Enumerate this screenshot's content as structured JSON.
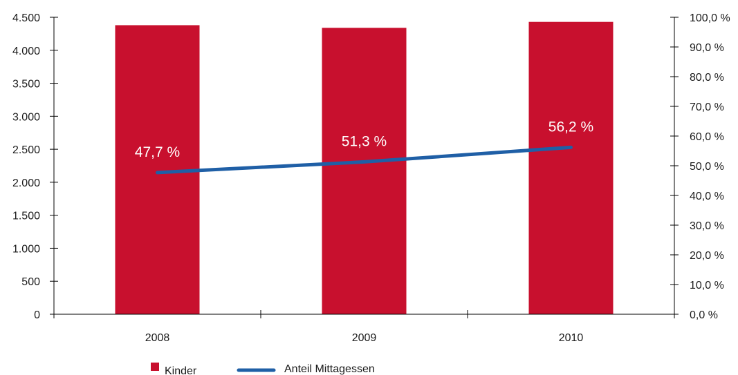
{
  "chart_data": {
    "type": "bar",
    "categories": [
      "2008",
      "2009",
      "2010"
    ],
    "y_left": {
      "range": [
        0,
        4500
      ],
      "ticks": [
        0,
        500,
        1000,
        1500,
        2000,
        2500,
        3000,
        3500,
        4000,
        4500
      ],
      "tick_labels": [
        "0",
        "500",
        "1.000",
        "1.500",
        "2.000",
        "2.500",
        "3.000",
        "3.500",
        "4.000",
        "4.500"
      ]
    },
    "y_right": {
      "range": [
        0,
        100
      ],
      "ticks": [
        0,
        10,
        20,
        30,
        40,
        50,
        60,
        70,
        80,
        90,
        100
      ],
      "tick_labels": [
        "0,0 %",
        "10,0 %",
        "20,0 %",
        "30,0 %",
        "40,0 %",
        "50,0 %",
        "60,0 %",
        "70,0 %",
        "80,0 %",
        "90,0 %",
        "100,0 %"
      ]
    },
    "series": [
      {
        "name": "Kinder",
        "type": "bar",
        "axis": "left",
        "color": "#c8102e",
        "values": [
          4380,
          4340,
          4430
        ]
      },
      {
        "name": "Anteil Mittagessen",
        "type": "line",
        "axis": "right",
        "color": "#1f5fa6",
        "values": [
          47.7,
          51.3,
          56.2
        ],
        "data_labels": [
          "47,7 %",
          "51,3 %",
          "56,2 %"
        ]
      }
    ],
    "grid": false,
    "legend_position": "bottom-left"
  }
}
